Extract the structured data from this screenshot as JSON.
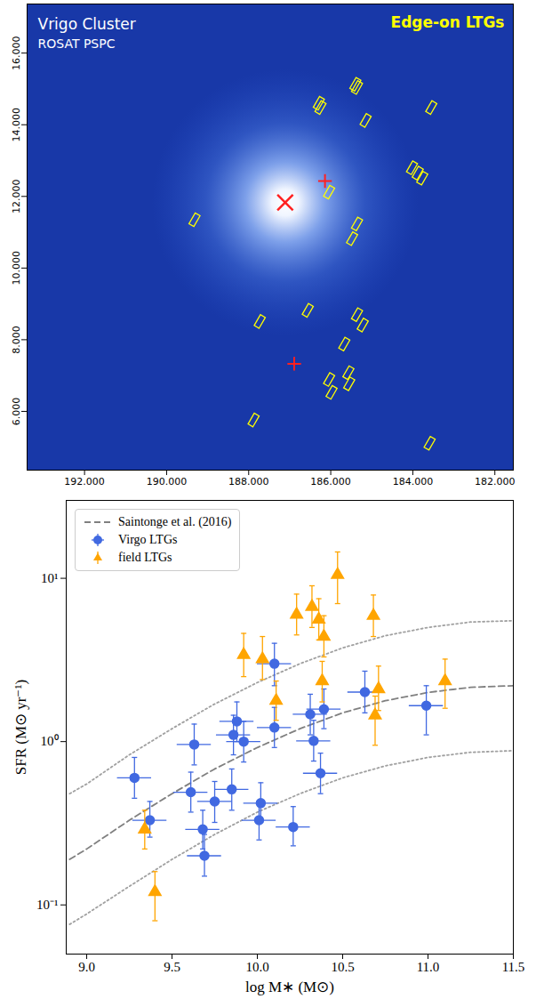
{
  "chart_data": [
    {
      "type": "scatter",
      "title": "Vrigo Cluster",
      "subtitle": "ROSAT PSPC",
      "xlim": [
        193.4,
        181.55
      ],
      "ylim": [
        4.36,
        17.37
      ],
      "xticks": [
        {
          "value": 192,
          "label": "192.000"
        },
        {
          "value": 190,
          "label": "190.000"
        },
        {
          "value": 188,
          "label": "188.000"
        },
        {
          "value": 186,
          "label": "186.000"
        },
        {
          "value": 184,
          "label": "184.000"
        },
        {
          "value": 182,
          "label": "182.000"
        }
      ],
      "yticks": [
        {
          "value": 6,
          "label": "6.000"
        },
        {
          "value": 8,
          "label": "8.000"
        },
        {
          "value": 10,
          "label": "10.000"
        },
        {
          "value": 12,
          "label": "12.000"
        },
        {
          "value": 14,
          "label": "14.000"
        },
        {
          "value": 16,
          "label": "16.000"
        }
      ],
      "series": [
        {
          "name": "Edge-on LTGs",
          "color": "#ffff00",
          "marker": "rectangle",
          "x": [
            186.29,
            186.25,
            185.4,
            185.36,
            185.15,
            183.55,
            184.02,
            183.88,
            183.77,
            186.04,
            189.32,
            185.36,
            185.48,
            186.56,
            187.73,
            185.36,
            185.22,
            185.67,
            186.04,
            185.98,
            185.57,
            185.55,
            187.88,
            183.59
          ],
          "y": [
            14.6,
            14.48,
            15.13,
            15.04,
            14.12,
            14.48,
            12.8,
            12.65,
            12.51,
            12.12,
            11.35,
            11.23,
            10.82,
            8.82,
            8.51,
            8.7,
            8.41,
            7.88,
            6.89,
            6.53,
            7.08,
            6.77,
            5.76,
            5.11
          ]
        },
        {
          "color": "#ff2020",
          "marker": "x",
          "x": [
            187.11
          ],
          "y": [
            11.83
          ]
        },
        {
          "color": "#ff2020",
          "marker": "plus",
          "x": [
            186.14,
            186.89
          ],
          "y": [
            12.43,
            7.33
          ]
        }
      ]
    },
    {
      "type": "scatter",
      "xlabel": "log M∗ (M⊙)",
      "ylabel": "SFR (M⊙ yr⁻¹)",
      "log": "y",
      "xlim": [
        8.88,
        11.5
      ],
      "ylim": [
        0.05,
        30
      ],
      "xticks": [
        {
          "value": 9,
          "label": "9.0"
        },
        {
          "value": 9.5,
          "label": "9.5"
        },
        {
          "value": 10,
          "label": "10.0"
        },
        {
          "value": 10.5,
          "label": "10.5"
        },
        {
          "value": 11,
          "label": "11.0"
        },
        {
          "value": 11.5,
          "label": "11.5"
        }
      ],
      "yticks": [
        {
          "value": 0.1,
          "label": "10⁻¹"
        },
        {
          "value": 1,
          "label": "10⁰"
        },
        {
          "value": 10,
          "label": "10¹"
        }
      ],
      "legend": "upper left",
      "series": [
        {
          "name": "Saintonge et al. (2016)",
          "type": "line",
          "color": "#808080",
          "line_style": "dashed",
          "x": [
            8.9,
            9.0,
            9.25,
            9.5,
            9.75,
            10.0,
            10.25,
            10.5,
            10.75,
            11.0,
            11.25,
            11.5
          ],
          "values": [
            0.19,
            0.22,
            0.33,
            0.48,
            0.68,
            0.92,
            1.2,
            1.5,
            1.78,
            2.0,
            2.15,
            2.2
          ]
        },
        {
          "type": "line",
          "color": "#a0a0a0",
          "line_style": "dotted",
          "x": [
            8.9,
            9.0,
            9.25,
            9.5,
            9.75,
            10.0,
            10.25,
            10.5,
            10.75,
            11.0,
            11.25,
            11.5
          ],
          "values": [
            0.48,
            0.55,
            0.83,
            1.2,
            1.7,
            2.3,
            3.0,
            3.75,
            4.45,
            5.0,
            5.4,
            5.5
          ]
        },
        {
          "type": "line",
          "color": "#a0a0a0",
          "line_style": "dotted",
          "x": [
            8.9,
            9.0,
            9.25,
            9.5,
            9.75,
            10.0,
            10.25,
            10.5,
            10.75,
            11.0,
            11.25,
            11.5
          ],
          "values": [
            0.076,
            0.088,
            0.13,
            0.19,
            0.27,
            0.37,
            0.48,
            0.6,
            0.71,
            0.8,
            0.86,
            0.88
          ]
        },
        {
          "name": "Virgo LTGs",
          "type": "scatter",
          "color": "#4169e1",
          "marker": "circle",
          "x": [
            9.28,
            9.37,
            9.61,
            9.63,
            9.68,
            9.69,
            9.75,
            9.85,
            9.86,
            9.88,
            9.92,
            10.01,
            10.02,
            10.1,
            10.1,
            10.21,
            10.31,
            10.33,
            10.37,
            10.39,
            10.63,
            10.99
          ],
          "values": [
            0.6,
            0.33,
            0.49,
            0.96,
            0.29,
            0.2,
            0.43,
            0.51,
            1.1,
            1.33,
            1.0,
            0.33,
            0.42,
            3.0,
            1.22,
            0.3,
            1.47,
            1.01,
            0.64,
            1.58,
            2.01,
            1.66
          ],
          "xerr": [
            0.1,
            0.1,
            0.1,
            0.1,
            0.1,
            0.1,
            0.1,
            0.1,
            0.1,
            0.1,
            0.1,
            0.1,
            0.1,
            0.1,
            0.1,
            0.1,
            0.1,
            0.1,
            0.1,
            0.1,
            0.1,
            0.1
          ],
          "y_low": [
            0.45,
            0.26,
            0.37,
            0.72,
            0.22,
            0.15,
            0.32,
            0.38,
            0.83,
            1.0,
            0.75,
            0.25,
            0.32,
            2.2,
            0.92,
            0.23,
            1.1,
            0.76,
            0.48,
            1.2,
            1.5,
            1.1
          ],
          "y_high": [
            0.8,
            0.43,
            0.65,
            1.28,
            0.38,
            0.27,
            0.57,
            0.68,
            1.45,
            1.75,
            1.33,
            0.43,
            0.56,
            4.0,
            1.62,
            0.4,
            1.95,
            1.35,
            0.85,
            2.1,
            2.7,
            2.2
          ]
        },
        {
          "name": "field LTGs",
          "type": "scatter",
          "color": "#ffa500",
          "marker": "triangle",
          "x": [
            9.34,
            9.4,
            9.92,
            10.03,
            10.11,
            10.23,
            10.32,
            10.36,
            10.38,
            10.39,
            10.47,
            10.68,
            10.69,
            10.71,
            11.1
          ],
          "values": [
            0.29,
            0.12,
            3.4,
            3.2,
            1.78,
            6.0,
            6.7,
            5.6,
            2.35,
            4.4,
            10.5,
            5.9,
            1.45,
            2.1,
            2.35
          ],
          "y_low": [
            0.22,
            0.08,
            2.5,
            2.4,
            1.35,
            4.5,
            5.0,
            4.2,
            1.75,
            3.3,
            7.0,
            4.4,
            0.95,
            1.55,
            1.6
          ],
          "y_high": [
            0.38,
            0.16,
            4.6,
            4.4,
            2.35,
            8.0,
            9.0,
            7.5,
            3.1,
            5.9,
            14.5,
            7.9,
            1.9,
            2.9,
            3.2
          ]
        }
      ]
    }
  ]
}
